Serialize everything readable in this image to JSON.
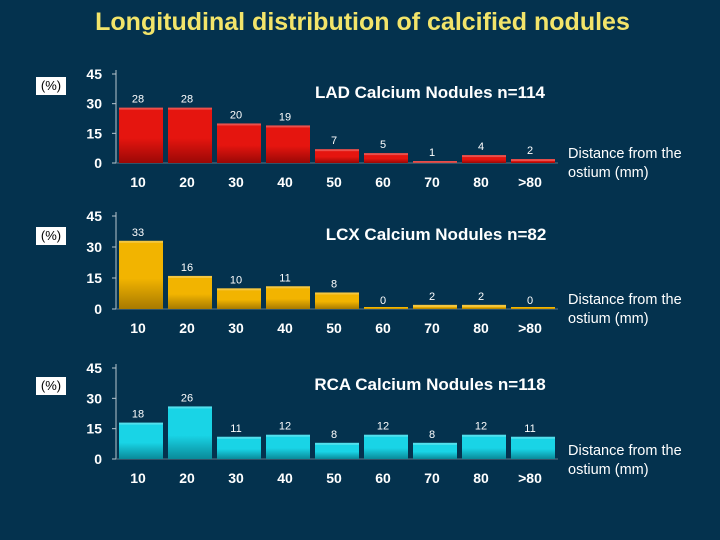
{
  "title": "Longitudinal distribution of calcified nodules",
  "chart_data": [
    {
      "type": "bar",
      "title": "LAD Calcium Nodules n=114",
      "ylabel": "(%)",
      "xlabel": "Distance from the ostium (mm)",
      "categories": [
        "10",
        "20",
        "30",
        "40",
        "50",
        "60",
        "70",
        "80",
        ">80"
      ],
      "values": [
        28,
        28,
        20,
        19,
        7,
        5,
        1,
        4,
        2
      ],
      "yticks": [
        0,
        15,
        30,
        45
      ],
      "ylim": [
        0,
        45
      ],
      "color": "#e5150f",
      "color_dark": "#9a0806"
    },
    {
      "type": "bar",
      "title": "LCX Calcium Nodules n=82",
      "ylabel": "(%)",
      "xlabel": "Distance from the ostium (mm)",
      "categories": [
        "10",
        "20",
        "30",
        "40",
        "50",
        "60",
        "70",
        "80",
        ">80"
      ],
      "values": [
        33,
        16,
        10,
        11,
        8,
        0,
        2,
        2,
        0
      ],
      "yticks": [
        0,
        15,
        30,
        45
      ],
      "ylim": [
        0,
        45
      ],
      "color": "#f2b400",
      "color_dark": "#a87a00"
    },
    {
      "type": "bar",
      "title": "RCA Calcium Nodules n=118",
      "ylabel": "(%)",
      "xlabel": "Distance from the ostium (mm)",
      "categories": [
        "10",
        "20",
        "30",
        "40",
        "50",
        "60",
        "70",
        "80",
        ">80"
      ],
      "values": [
        18,
        26,
        11,
        12,
        8,
        12,
        8,
        12,
        11
      ],
      "yticks": [
        0,
        15,
        30,
        45
      ],
      "ylim": [
        0,
        45
      ],
      "color": "#19d4e6",
      "color_dark": "#0a8a99"
    }
  ]
}
